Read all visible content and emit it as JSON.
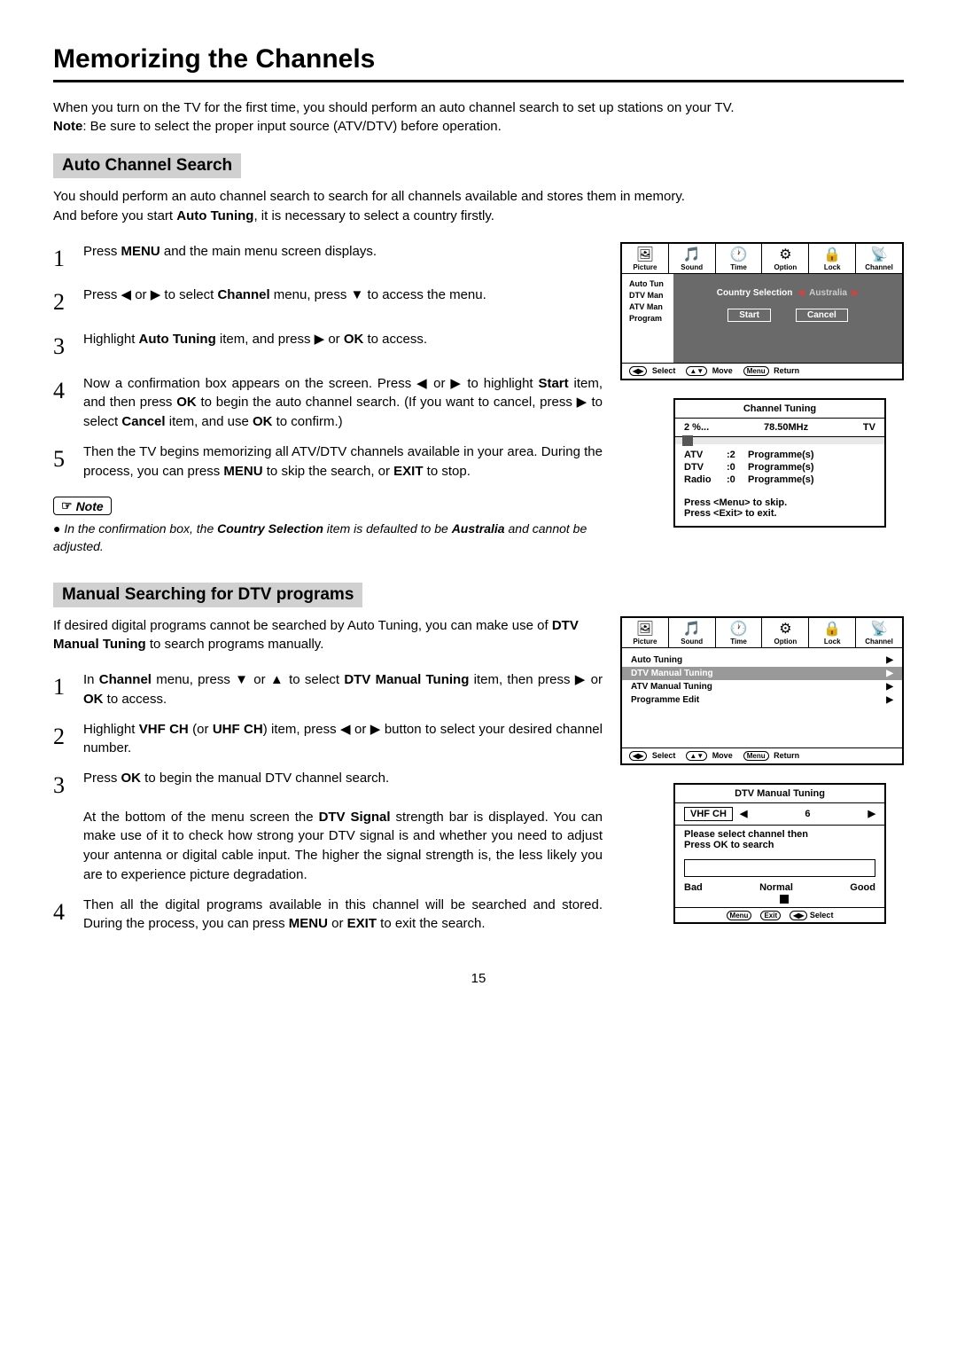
{
  "page_title": "Memorizing the Channels",
  "intro_line1": "When you turn on the TV for the first time, you should perform an auto channel search to set up stations on your TV.",
  "intro_note_prefix": "Note",
  "intro_line2": ":  Be sure to select the proper input source (ATV/DTV) before operation.",
  "auto": {
    "heading": "Auto Channel Search",
    "desc1": "You should perform an auto channel search to search for all channels available and stores them in memory.",
    "desc2_a": "And before you start ",
    "desc2_b": "Auto Tuning",
    "desc2_c": ", it is necessary to select a country firstly.",
    "steps": [
      {
        "n": "1",
        "text_a": "Press ",
        "b": "MENU",
        "text_b": " and the main menu screen displays."
      },
      {
        "n": "2",
        "text_a": "Press ◀ or ▶ to select ",
        "b": "Channel",
        "text_b": " menu,  press ▼ to access the menu."
      },
      {
        "n": "3",
        "text_a": "Highlight ",
        "b": "Auto Tuning",
        "text_b": " item, and press  ▶ or ",
        "b2": "OK",
        "text_c": " to access."
      },
      {
        "n": "4",
        "text_a": "Now a confirmation box appears on the screen. Press ◀ or ▶ to highlight ",
        "b": "Start",
        "text_b": " item, and then press ",
        "b2": "OK",
        "text_c": " to begin the auto channel search. (If you want to cancel, press  ▶ to select ",
        "b3": "Cancel",
        "text_d": " item, and use ",
        "b4": "OK ",
        "text_e": " to confirm.)"
      },
      {
        "n": "5",
        "text_a": "Then the TV begins memorizing all ATV/DTV channels available in your area. During the process, you can press ",
        "b": "MENU",
        "text_b": " to skip the search, or ",
        "b2": "EXIT",
        "text_c": " to stop."
      }
    ],
    "note_label": "Note",
    "note_body_a": "In the confirmation box, the ",
    "note_body_b": "Country Selection",
    "note_body_c": " item is defaulted to be ",
    "note_body_d": "Australia",
    "note_body_e": " and cannot be adjusted."
  },
  "manual": {
    "heading": "Manual Searching for DTV programs",
    "desc_a": "If desired digital programs cannot be searched by Auto Tuning, you can make use of ",
    "desc_b": "DTV Manual Tuning",
    "desc_c": " to search programs manually.",
    "steps": [
      {
        "n": "1",
        "text_a": "In ",
        "b": "Channel",
        "text_b": " menu,  press ▼ or ▲  to select ",
        "b2": "DTV Manual Tuning",
        "text_c": " item, then press ▶ or ",
        "b3": "OK",
        "text_d": " to access."
      },
      {
        "n": "2",
        "text_a": "Highlight ",
        "b": "VHF CH",
        "text_b": " (or ",
        "b2": "UHF CH",
        "text_c": ") item, press ◀ or ▶ button to select your desired channel number."
      },
      {
        "n": "3",
        "text_a": "Press ",
        "b": "OK",
        "text_b": " to begin the manual DTV  channel search.",
        "para2_a": "At the bottom of the menu screen the ",
        "para2_b": "DTV Signal",
        "para2_c": " strength bar is displayed. You can make use of it to check how strong your DTV signal is and whether you need to adjust your antenna or digital cable input. The higher the signal strength is, the less likely you are to experience picture degradation."
      },
      {
        "n": "4",
        "text_a": "Then all the digital programs available in this channel will be searched and stored. During the process, you can press ",
        "b": "MENU",
        "text_b": " or ",
        "b2": "EXIT",
        "text_c": " to exit the search."
      }
    ]
  },
  "osd_tabs": [
    {
      "icon": "🖼",
      "label": "Picture"
    },
    {
      "icon": "🎵",
      "label": "Sound"
    },
    {
      "icon": "🕐",
      "label": "Time"
    },
    {
      "icon": "⚙",
      "label": "Option"
    },
    {
      "icon": "🔒",
      "label": "Lock"
    },
    {
      "icon": "📡",
      "label": "Channel"
    }
  ],
  "osd1": {
    "side": [
      "Auto Tun",
      "DTV Man",
      "ATV Man",
      "Program"
    ],
    "popup_label": "Country Selection",
    "popup_value": "Australia",
    "start": "Start",
    "cancel": "Cancel",
    "footer": [
      {
        "k": "◀▶",
        "t": "Select"
      },
      {
        "k": "▲▼",
        "t": "Move"
      },
      {
        "k": "Menu",
        "t": "Return"
      }
    ]
  },
  "tuning": {
    "title": "Channel  Tuning",
    "percent": "2  %...",
    "freq": "78.50MHz",
    "mode": "TV",
    "rows": [
      {
        "a": "ATV",
        "b": ":2",
        "c": "Programme(s)"
      },
      {
        "a": "DTV",
        "b": ":0",
        "c": "Programme(s)"
      },
      {
        "a": "Radio",
        "b": ":0",
        "c": "Programme(s)"
      }
    ],
    "f1": "Press <Menu> to skip.",
    "f2": "Press <Exit> to exit."
  },
  "osd2": {
    "items": [
      {
        "t": "Auto Tuning",
        "sel": false
      },
      {
        "t": "DTV Manual Tuning",
        "sel": true
      },
      {
        "t": "ATV Manual Tuning",
        "sel": false
      },
      {
        "t": "Programme Edit",
        "sel": false
      }
    ],
    "footer": [
      {
        "k": "◀▶",
        "t": "Select"
      },
      {
        "k": "▲▼",
        "t": "Move"
      },
      {
        "k": "Menu",
        "t": "Return"
      }
    ]
  },
  "dtv": {
    "title": "DTV Manual Tuning",
    "ch_label": "VHF  CH",
    "ch_val": "6",
    "msg1": "Please select channel then",
    "msg2": "Press OK to search",
    "sig": [
      "Bad",
      "Normal",
      "Good"
    ],
    "foot": [
      {
        "k": "Menu"
      },
      {
        "k": "Exit"
      },
      {
        "k": "◀▶",
        "t": "Select"
      }
    ]
  },
  "page_number": "15"
}
